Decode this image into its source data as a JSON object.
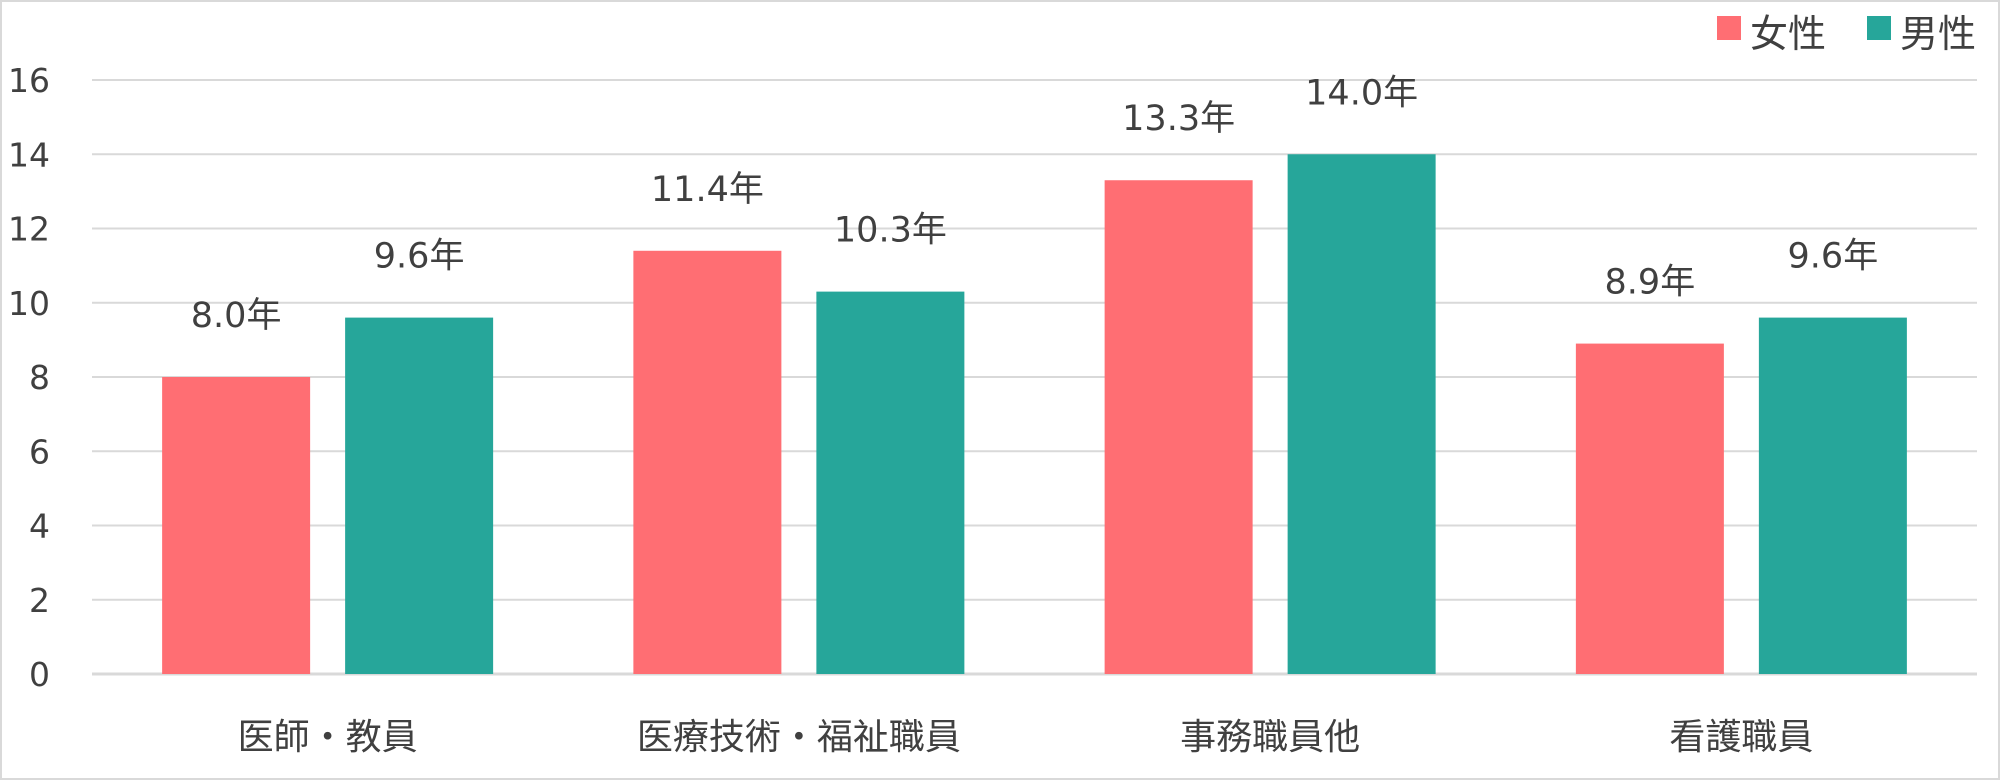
{
  "chart_data": {
    "type": "bar",
    "title": "",
    "xlabel": "",
    "ylabel": "",
    "categories": [
      "医師・教員",
      "医療技術・福祉職員",
      "事務職員他",
      "看護職員"
    ],
    "series": [
      {
        "name": "女性",
        "color": "#ff6e73",
        "values": [
          8.0,
          11.4,
          13.3,
          8.9
        ],
        "labels": [
          "8.0年",
          "11.4年",
          "13.3年",
          "8.9年"
        ]
      },
      {
        "name": "男性",
        "color": "#26a69a",
        "values": [
          9.6,
          10.3,
          14.0,
          9.6
        ],
        "labels": [
          "9.6年",
          "10.3年",
          "14.0年",
          "9.6年"
        ]
      }
    ],
    "ylim": [
      0,
      16
    ],
    "yticks": [
      0,
      2,
      4,
      6,
      8,
      10,
      12,
      14,
      16
    ],
    "grid": true,
    "legend_position": "top-right",
    "gridline_color": "#d9d9d9",
    "axis_text_color": "#404040"
  }
}
